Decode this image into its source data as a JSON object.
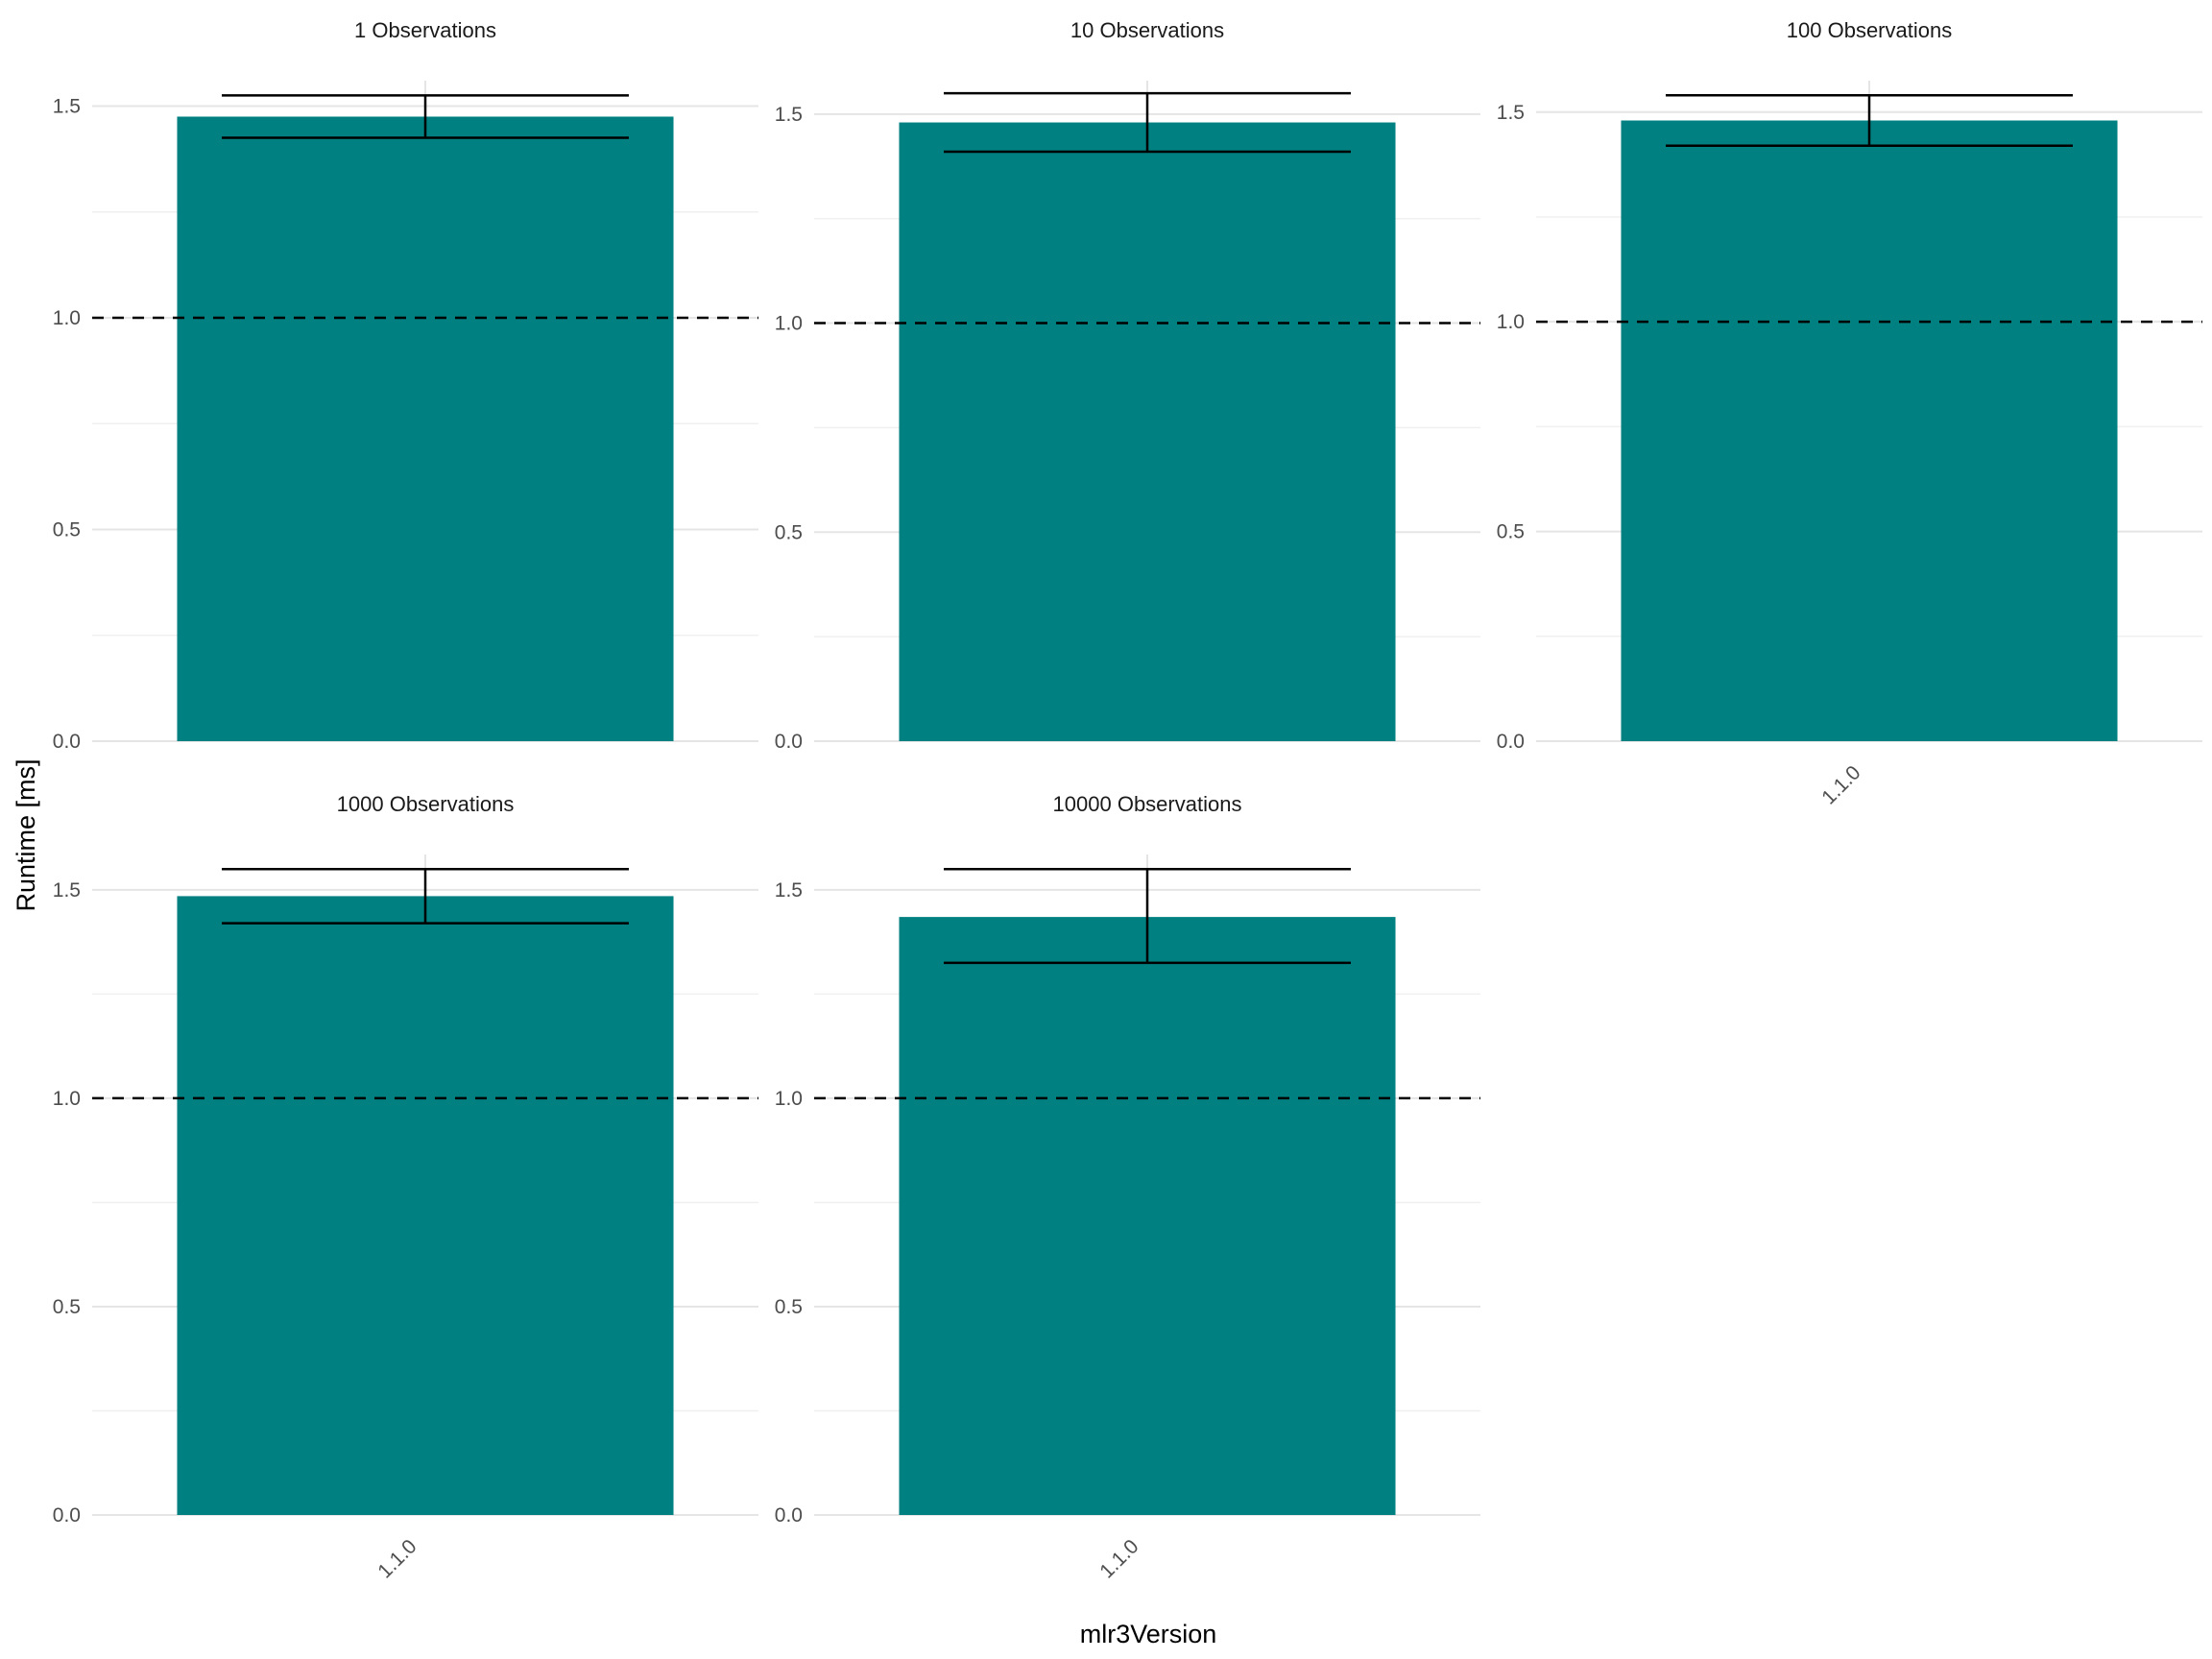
{
  "chart_data": {
    "type": "bar",
    "xlabel": "mlr3Version",
    "ylabel": "Runtime [ms]",
    "bar_color": "#008080",
    "reference_line": {
      "y": 1.0,
      "style": "dashed",
      "color": "#000000"
    },
    "legend": "none",
    "grid": true,
    "panels": [
      {
        "title": "1 Observations",
        "categories": [
          "1.1.0"
        ],
        "values": [
          1.475
        ],
        "error_low": [
          1.425
        ],
        "error_high": [
          1.525
        ],
        "ylim": [
          0,
          1.6
        ],
        "yticks": [
          "0.0",
          "0.5",
          "1.0",
          "1.5"
        ]
      },
      {
        "title": "10 Observations",
        "categories": [
          "1.1.0"
        ],
        "values": [
          1.48
        ],
        "error_low": [
          1.41
        ],
        "error_high": [
          1.55
        ],
        "ylim": [
          0,
          1.6
        ],
        "yticks": [
          "0.0",
          "0.5",
          "1.0",
          "1.5"
        ]
      },
      {
        "title": "100 Observations",
        "categories": [
          "1.1.0"
        ],
        "values": [
          1.48
        ],
        "error_low": [
          1.42
        ],
        "error_high": [
          1.54
        ],
        "ylim": [
          0,
          1.6
        ],
        "yticks": [
          "0.0",
          "0.5",
          "1.0",
          "1.5"
        ]
      },
      {
        "title": "1000 Observations",
        "categories": [
          "1.1.0"
        ],
        "values": [
          1.485
        ],
        "error_low": [
          1.42
        ],
        "error_high": [
          1.55
        ],
        "ylim": [
          0,
          1.6
        ],
        "yticks": [
          "0.0",
          "0.5",
          "1.0",
          "1.5"
        ]
      },
      {
        "title": "10000 Observations",
        "categories": [
          "1.1.0"
        ],
        "values": [
          1.435
        ],
        "error_low": [
          1.325
        ],
        "error_high": [
          1.55
        ],
        "ylim": [
          0,
          1.6
        ],
        "yticks": [
          "0.0",
          "0.5",
          "1.0",
          "1.5"
        ]
      }
    ],
    "x_tick_labels_shown_under": [
      "100 Observations",
      "1000 Observations",
      "10000 Observations"
    ]
  }
}
